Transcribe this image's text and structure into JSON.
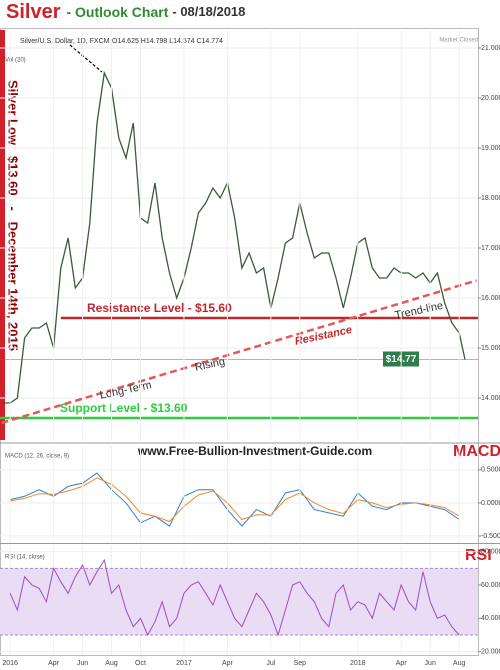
{
  "header": {
    "title_silver": "Silver",
    "title_outlook": "- Outlook Chart",
    "title_date": "- 08/18/2018",
    "website": "www.Free-Bullion-Investment-Guide.com",
    "side_note": "Silver Low   $13.60   -   December 14th, 2015",
    "status": "Market Closed"
  },
  "chart_data": [
    {
      "type": "line",
      "symbol": "Silver/U.S. Dollar, 1D, FXCM",
      "ohlc": "O14.625  H14.798  L14.574  C14.774",
      "volume_label": "Vol (20)",
      "x": [
        -0.5,
        0,
        0.5,
        1,
        1.5,
        2,
        2.5,
        3,
        3.5,
        4,
        4.5,
        5,
        5.5,
        6,
        6.5,
        7,
        7.5,
        8,
        8.5,
        9,
        9.5,
        10,
        10.5,
        11,
        11.5,
        12,
        12.5,
        13,
        13.5,
        14,
        14.5,
        15,
        15.5,
        16,
        16.5,
        17,
        17.5,
        18,
        18.5,
        19,
        19.5,
        20,
        20.5,
        21,
        21.5,
        22,
        22.5,
        23,
        23.5,
        24,
        24.5,
        25,
        25.5,
        26,
        26.5,
        27,
        27.5,
        28,
        28.5,
        29,
        29.5,
        30,
        30.5,
        31,
        31.4
      ],
      "series": [
        {
          "name": "Silver/U.S. Dollar",
          "color": "#3a5a3a",
          "values": [
            13.9,
            13.9,
            14.0,
            15.2,
            15.4,
            15.4,
            15.5,
            15.0,
            16.6,
            17.2,
            16.2,
            16.4,
            17.5,
            19.5,
            20.5,
            20.2,
            19.2,
            18.8,
            19.5,
            17.6,
            17.5,
            18.3,
            17.2,
            16.5,
            16.0,
            16.4,
            17.0,
            17.7,
            17.9,
            18.2,
            18.0,
            18.3,
            17.6,
            16.6,
            16.9,
            16.5,
            16.6,
            15.8,
            16.4,
            17.1,
            17.2,
            17.9,
            17.3,
            16.8,
            16.9,
            16.9,
            16.4,
            15.8,
            16.4,
            17.1,
            17.2,
            16.6,
            16.4,
            16.4,
            16.6,
            16.5,
            16.5,
            16.4,
            16.5,
            16.3,
            16.5,
            15.9,
            15.5,
            15.3,
            14.77
          ]
        }
      ],
      "trend": {
        "x": [
          -0.6,
          32.2
        ],
        "values": [
          13.5,
          16.35
        ],
        "color": "#e05a5a"
      },
      "levels": [
        {
          "label": "Resistance Level - $15.60",
          "value": 15.6,
          "color": "#c0272d"
        },
        {
          "label": "Support Level - $13.60",
          "value": 13.6,
          "color": "#2ecc40"
        }
      ],
      "last_price": {
        "value": 14.77,
        "label": "$14.77"
      },
      "annotations": [
        "Trend-line",
        "Resistance",
        "Rising",
        "Long-Term"
      ],
      "xlim": [
        -0.7,
        32.3
      ],
      "ylim": [
        13.16,
        21.36
      ],
      "yticks": [
        {
          "value": 21,
          "label": "21.000"
        },
        {
          "value": 20,
          "label": "20.000"
        },
        {
          "value": 19,
          "label": "19.000"
        },
        {
          "value": 18,
          "label": "18.000"
        },
        {
          "value": 17,
          "label": "17.000"
        },
        {
          "value": 16,
          "label": "16.000"
        },
        {
          "value": 15,
          "label": "15.000"
        },
        {
          "value": 14,
          "label": "14.000"
        }
      ]
    },
    {
      "type": "line",
      "title": "MACD",
      "indicator": "MACD (12, 26, close, 9)",
      "x": [
        0,
        1,
        2,
        3,
        4,
        5,
        6,
        7,
        8,
        9,
        10,
        11,
        12,
        13,
        14,
        15,
        16,
        17,
        18,
        19,
        20,
        21,
        22,
        23,
        24,
        25,
        26,
        27,
        28,
        29,
        30,
        31
      ],
      "series": [
        {
          "name": "MACD",
          "color": "#2f7fd6",
          "values": [
            0.05,
            0.1,
            0.2,
            0.1,
            0.25,
            0.3,
            0.45,
            0.2,
            0.0,
            -0.3,
            -0.2,
            -0.35,
            0.1,
            0.2,
            0.2,
            -0.1,
            -0.35,
            -0.1,
            -0.2,
            0.15,
            0.2,
            -0.1,
            -0.15,
            -0.2,
            0.15,
            -0.05,
            -0.1,
            0.0,
            0.0,
            -0.05,
            -0.1,
            -0.25
          ]
        },
        {
          "name": "Signal",
          "color": "#f08a24",
          "values": [
            0.03,
            0.07,
            0.14,
            0.13,
            0.18,
            0.25,
            0.38,
            0.28,
            0.1,
            -0.15,
            -0.2,
            -0.28,
            -0.05,
            0.12,
            0.18,
            0.0,
            -0.25,
            -0.18,
            -0.18,
            0.05,
            0.15,
            0.0,
            -0.1,
            -0.16,
            0.05,
            0.0,
            -0.07,
            -0.02,
            0.0,
            -0.03,
            -0.07,
            -0.2
          ]
        }
      ],
      "xlim": [
        -0.7,
        32.3
      ],
      "ylim": [
        -0.59,
        0.86
      ],
      "yticks": [
        {
          "value": 0.5,
          "label": "0.5000"
        },
        {
          "value": 0,
          "label": "0.0000"
        },
        {
          "value": -0.5,
          "label": "-0.5000"
        }
      ]
    },
    {
      "type": "line",
      "title": "RSI",
      "indicator": "RSI (14, close)",
      "x": [
        0,
        0.5,
        1,
        1.5,
        2,
        2.5,
        3,
        3.5,
        4,
        4.5,
        5,
        5.5,
        6,
        6.5,
        7,
        7.5,
        8,
        8.5,
        9,
        9.5,
        10,
        10.5,
        11,
        11.5,
        12,
        12.5,
        13,
        13.5,
        14,
        14.5,
        15,
        15.5,
        16,
        16.5,
        17,
        17.5,
        18,
        18.5,
        19,
        19.5,
        20,
        20.5,
        21,
        21.5,
        22,
        22.5,
        23,
        23.5,
        24,
        24.5,
        25,
        25.5,
        26,
        26.5,
        27,
        27.5,
        28,
        28.5,
        29,
        29.5,
        30,
        30.5,
        31
      ],
      "series": [
        {
          "name": "RSI",
          "color": "#9b4fc0",
          "values": [
            55,
            45,
            65,
            60,
            58,
            50,
            70,
            62,
            55,
            65,
            72,
            60,
            68,
            75,
            55,
            60,
            45,
            35,
            40,
            30,
            38,
            50,
            35,
            40,
            55,
            60,
            62,
            55,
            48,
            60,
            50,
            40,
            35,
            45,
            55,
            50,
            42,
            30,
            45,
            60,
            62,
            55,
            50,
            40,
            35,
            55,
            60,
            45,
            50,
            48,
            40,
            55,
            50,
            45,
            60,
            50,
            45,
            68,
            50,
            40,
            42,
            35,
            30
          ]
        }
      ],
      "band": [
        30,
        70
      ],
      "xlim": [
        -0.7,
        32.3
      ],
      "ylim": [
        18,
        84
      ],
      "yticks": [
        {
          "value": 80,
          "label": "80.0000"
        },
        {
          "value": 60,
          "label": "60.0000"
        },
        {
          "value": 40,
          "label": "40.0000"
        },
        {
          "value": 20,
          "label": "20.0000"
        }
      ],
      "xticks": [
        {
          "value": 0,
          "label": "2016"
        },
        {
          "value": 3,
          "label": "Apr"
        },
        {
          "value": 5,
          "label": "Jun"
        },
        {
          "value": 7,
          "label": "Aug"
        },
        {
          "value": 9,
          "label": "Oct"
        },
        {
          "value": 12,
          "label": "2017"
        },
        {
          "value": 15,
          "label": "Apr"
        },
        {
          "value": 18,
          "label": "Jul"
        },
        {
          "value": 20,
          "label": "Sep"
        },
        {
          "value": 24,
          "label": "2018"
        },
        {
          "value": 27,
          "label": "Apr"
        },
        {
          "value": 29,
          "label": "Jun"
        },
        {
          "value": 31,
          "label": "Aug"
        }
      ]
    }
  ]
}
